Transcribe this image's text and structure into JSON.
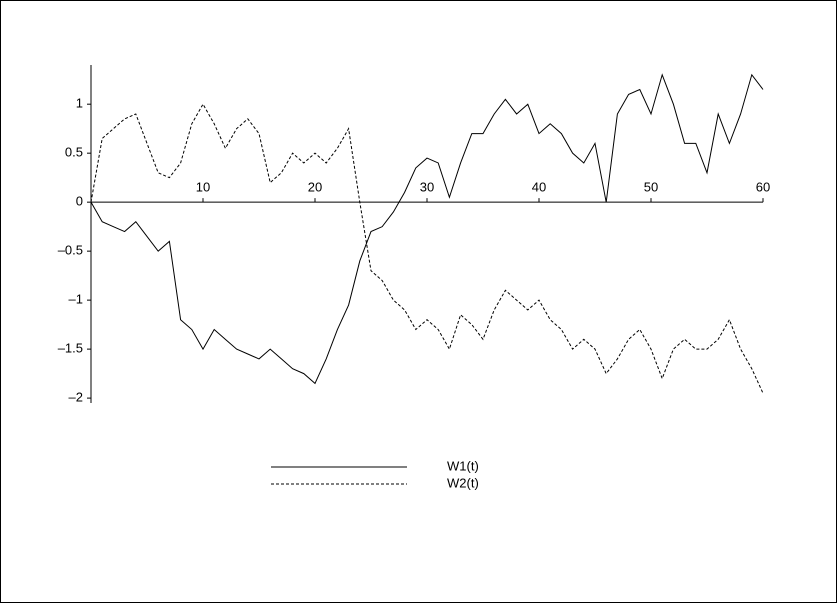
{
  "chart_data": {
    "type": "line",
    "x": [
      0,
      1,
      2,
      3,
      4,
      5,
      6,
      7,
      8,
      9,
      10,
      11,
      12,
      13,
      14,
      15,
      16,
      17,
      18,
      19,
      20,
      21,
      22,
      23,
      24,
      25,
      26,
      27,
      28,
      29,
      30,
      31,
      32,
      33,
      34,
      35,
      36,
      37,
      38,
      39,
      40,
      41,
      42,
      43,
      44,
      45,
      46,
      47,
      48,
      49,
      50,
      51,
      52,
      53,
      54,
      55,
      56,
      57,
      58,
      59,
      60
    ],
    "series": [
      {
        "name": "W1(t)",
        "color": "#000000",
        "dash": false,
        "values": [
          0,
          -0.2,
          -0.25,
          -0.3,
          -0.2,
          -0.35,
          -0.5,
          -0.4,
          -1.2,
          -1.3,
          -1.5,
          -1.3,
          -1.4,
          -1.5,
          -1.55,
          -1.6,
          -1.5,
          -1.6,
          -1.7,
          -1.75,
          -1.85,
          -1.6,
          -1.3,
          -1.05,
          -0.6,
          -0.3,
          -0.25,
          -0.1,
          0.1,
          0.35,
          0.45,
          0.4,
          0.05,
          0.4,
          0.7,
          0.7,
          0.9,
          1.05,
          0.9,
          1.0,
          0.7,
          0.8,
          0.7,
          0.5,
          0.4,
          0.6,
          0.0,
          0.9,
          1.1,
          1.15,
          0.9,
          1.3,
          1.0,
          0.6,
          0.6,
          0.3,
          0.9,
          0.6,
          0.9,
          1.3,
          1.15
        ]
      },
      {
        "name": "W2(t)",
        "color": "#000000",
        "dash": true,
        "values": [
          0,
          0.65,
          0.75,
          0.85,
          0.9,
          0.6,
          0.3,
          0.25,
          0.4,
          0.8,
          1.0,
          0.8,
          0.55,
          0.75,
          0.85,
          0.7,
          0.2,
          0.3,
          0.5,
          0.4,
          0.5,
          0.4,
          0.55,
          0.75,
          0.0,
          -0.7,
          -0.8,
          -1.0,
          -1.1,
          -1.3,
          -1.2,
          -1.3,
          -1.5,
          -1.15,
          -1.25,
          -1.4,
          -1.1,
          -0.9,
          -1.0,
          -1.1,
          -1.0,
          -1.2,
          -1.3,
          -1.5,
          -1.4,
          -1.5,
          -1.75,
          -1.6,
          -1.4,
          -1.3,
          -1.5,
          -1.8,
          -1.5,
          -1.4,
          -1.5,
          -1.5,
          -1.4,
          -1.2,
          -1.5,
          -1.7,
          -1.95
        ]
      }
    ],
    "xlim": [
      0,
      60
    ],
    "xticks": [
      10,
      20,
      30,
      40,
      50,
      60
    ],
    "ylim": [
      -2.05,
      1.4
    ],
    "yticks": [
      {
        "value": -2,
        "label": "–2"
      },
      {
        "value": -1.5,
        "label": "–1.5"
      },
      {
        "value": -1,
        "label": "–1"
      },
      {
        "value": -0.5,
        "label": "–0.5"
      },
      0,
      0.5,
      1
    ]
  }
}
